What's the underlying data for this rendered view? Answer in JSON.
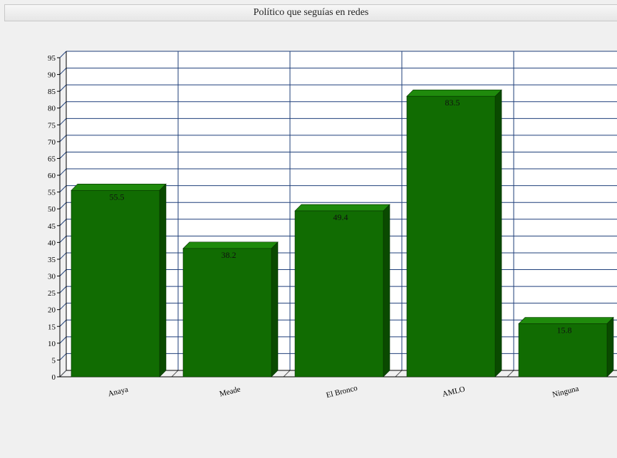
{
  "window": {
    "title": "Político que seguías en redes"
  },
  "chart_data": {
    "type": "bar",
    "title": "Político que seguías en redes",
    "categories": [
      "Anaya",
      "Meade",
      "El Bronco",
      "AMLO",
      "Ninguna"
    ],
    "values": [
      55.5,
      38.2,
      49.4,
      83.5,
      15.8
    ],
    "value_labels": [
      "55.5",
      "38.2",
      "49.4",
      "83.5",
      "15.8"
    ],
    "xlabel": "",
    "ylabel": "",
    "ylim": [
      0,
      95
    ],
    "yticks": [
      0,
      5,
      10,
      15,
      20,
      25,
      30,
      35,
      40,
      45,
      50,
      55,
      60,
      65,
      70,
      75,
      80,
      85,
      90,
      95
    ],
    "grid": true,
    "style": "3d",
    "colors": {
      "bar": "#116c02",
      "bar_top": "#1f8a0c",
      "bar_side": "#0a4a00",
      "grid": "#1f3f7a",
      "axis": "#000000"
    }
  }
}
